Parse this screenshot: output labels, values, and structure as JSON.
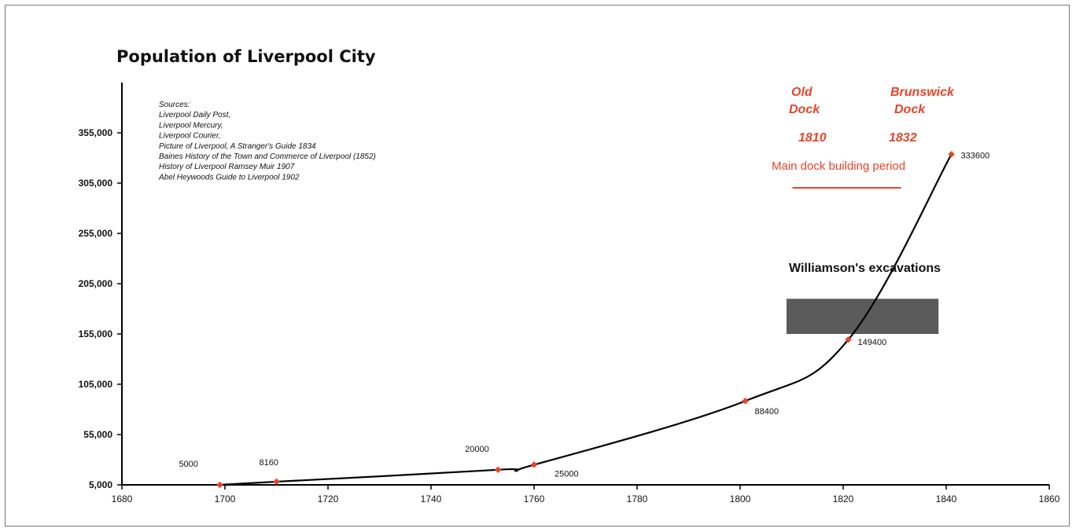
{
  "chart_data": {
    "type": "line",
    "title": "Population of Liverpool City",
    "xlabel": "",
    "ylabel": "",
    "xlim": [
      1680,
      1860
    ],
    "ylim": [
      5000,
      405000
    ],
    "x_ticks": [
      "1680",
      "1700",
      "1720",
      "1740",
      "1760",
      "1780",
      "1800",
      "1820",
      "1840",
      "1860"
    ],
    "y_ticks": [
      "5,000",
      "55,000",
      "105,000",
      "155,000",
      "205,000",
      "255,000",
      "305,000",
      "355,000"
    ],
    "grid": false,
    "series": [
      {
        "points": [
          {
            "x": 1699,
            "y": 5000,
            "label": "5000"
          },
          {
            "x": 1710,
            "y": 8160,
            "label": "8160"
          },
          {
            "x": 1753,
            "y": 20000,
            "label": "20000"
          },
          {
            "x": 1760,
            "y": 25000,
            "label": "25000"
          },
          {
            "x": 1801,
            "y": 88400,
            "label": "88400"
          },
          {
            "x": 1821,
            "y": 149400,
            "label": "149400"
          },
          {
            "x": 1841,
            "y": 333600,
            "label": "333600"
          }
        ]
      }
    ],
    "sources": [
      "Sources:",
      "Liverpool Daily Post,",
      "Liverpool Mercury,",
      "Liverpool Courier,",
      "Picture of Liverpool, A Stranger's Guide 1834",
      "Baines History of the Town and Commerce of Liverpool (1852)",
      "History of Liverpool Ramsey Muir 1907",
      "Abel Heywoods Guide to Liverpool 1902"
    ],
    "annotations": {
      "old_dock": {
        "line1": "Old",
        "line2": "Dock",
        "year": "1810"
      },
      "brunswick_dock": {
        "line1": "Brunswick",
        "line2": "Dock",
        "year": "1832"
      },
      "period_label": "Main dock building period",
      "period_years": [
        1810,
        1832
      ],
      "excavations_label": "Williamson's excavations",
      "excavations_range": {
        "x": [
          1809,
          1838.5
        ],
        "y": [
          155000,
          190000
        ]
      },
      "accent_color": "#e8442a",
      "bar_color": "#5b5b5b"
    }
  }
}
